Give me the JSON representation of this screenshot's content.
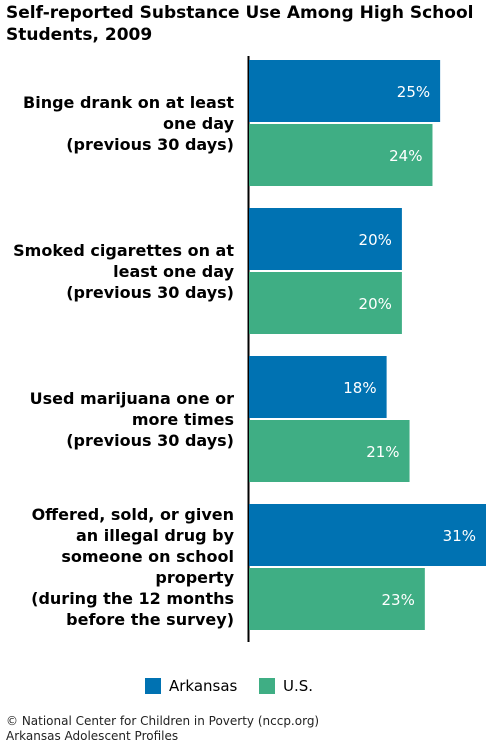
{
  "title": "Self-reported Substance Use Among High School Students, 2009",
  "chart_data": {
    "type": "bar",
    "orientation": "horizontal",
    "categories": [
      [
        "Binge drank on at least",
        "one day",
        "(previous 30 days)"
      ],
      [
        "Smoked cigarettes on at",
        "least one day",
        "(previous 30 days)"
      ],
      [
        "Used marijuana one or",
        "more times",
        "(previous 30 days)"
      ],
      [
        "Offered, sold, or given",
        "an illegal drug by",
        "someone on school",
        "property",
        "(during the 12 months",
        "before the survey)"
      ]
    ],
    "series": [
      {
        "name": "Arkansas",
        "values": [
          25,
          20,
          18,
          31
        ],
        "labels": [
          "25%",
          "20%",
          "18%",
          "31%"
        ],
        "color": "#0072b2"
      },
      {
        "name": "U.S.",
        "values": [
          24,
          20,
          21,
          23
        ],
        "labels": [
          "24%",
          "20%",
          "21%",
          "23%"
        ],
        "color": "#3fae84"
      }
    ],
    "xlim": [
      0,
      31
    ],
    "legend_position": "bottom",
    "grid": false
  },
  "footer": [
    "© National Center for Children in Poverty (nccp.org)",
    "Arkansas Adolescent Profiles"
  ]
}
